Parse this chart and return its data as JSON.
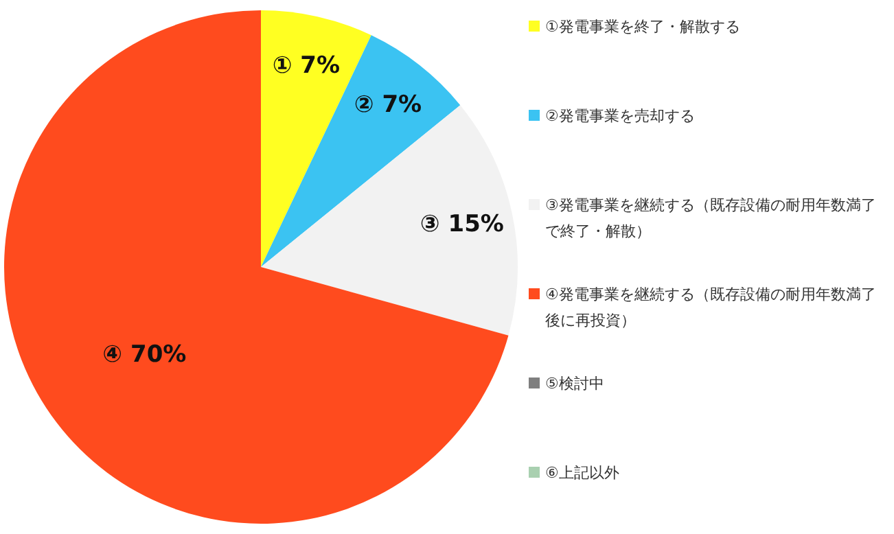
{
  "chart_data": {
    "type": "pie",
    "categories": [
      "①発電事業を終了・解散する",
      "②発電事業を売却する",
      "③発電事業を継続する（既存設備の耐用年数満了で終了・解散）",
      "④発電事業を継続する（既存設備の耐用年数満了後に再投資）",
      "⑤検討中",
      "⑥上記以外"
    ],
    "values": [
      7,
      7,
      15,
      70,
      0,
      0
    ],
    "colors": [
      "#ffff22",
      "#3bc3f2",
      "#f2f2f2",
      "#ff4b1e",
      "#7f7f7f",
      "#a9d0b0"
    ],
    "value_labels": [
      "① 7%",
      "② 7%",
      "③ 15%",
      "④ 70%",
      null,
      null
    ],
    "legend": "right"
  }
}
